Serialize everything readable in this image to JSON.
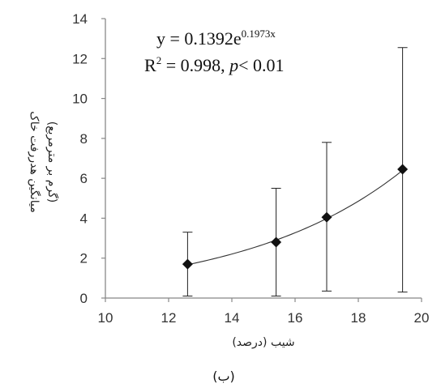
{
  "caption": "(ب)",
  "chart_data": {
    "type": "scatter",
    "xlabel": "شیب (درصد)",
    "ylabel_line1": "میانگین هدررفت خاک",
    "ylabel_line2": "(گرم بر مترمربع)",
    "xlim": [
      10,
      20
    ],
    "ylim": [
      0,
      14
    ],
    "xticks": [
      "10",
      "12",
      "14",
      "16",
      "18",
      "20"
    ],
    "yticks": [
      "0",
      "2",
      "4",
      "6",
      "8",
      "10",
      "12",
      "14"
    ],
    "points": [
      {
        "x": 12.6,
        "y": 1.7,
        "err_low": 0.1,
        "err_high": 3.3
      },
      {
        "x": 15.4,
        "y": 2.8,
        "err_low": 0.1,
        "err_high": 5.5
      },
      {
        "x": 17.0,
        "y": 4.05,
        "err_low": 0.35,
        "err_high": 7.8
      },
      {
        "x": 19.4,
        "y": 6.45,
        "err_low": 0.3,
        "err_high": 12.55
      }
    ],
    "trendline": {
      "type": "exponential",
      "a": 0.1392,
      "b": 0.1973,
      "x_range": [
        12.6,
        19.4
      ]
    },
    "equation": {
      "y_prefix": "y = 0.1392e",
      "y_exponent": "0.1973x",
      "r_prefix": "R",
      "r_sup": "2",
      "r_value": " = 0.998,  ",
      "p_symbol": "p",
      "p_text": "< 0.01"
    },
    "grid": false,
    "legend": "none"
  }
}
